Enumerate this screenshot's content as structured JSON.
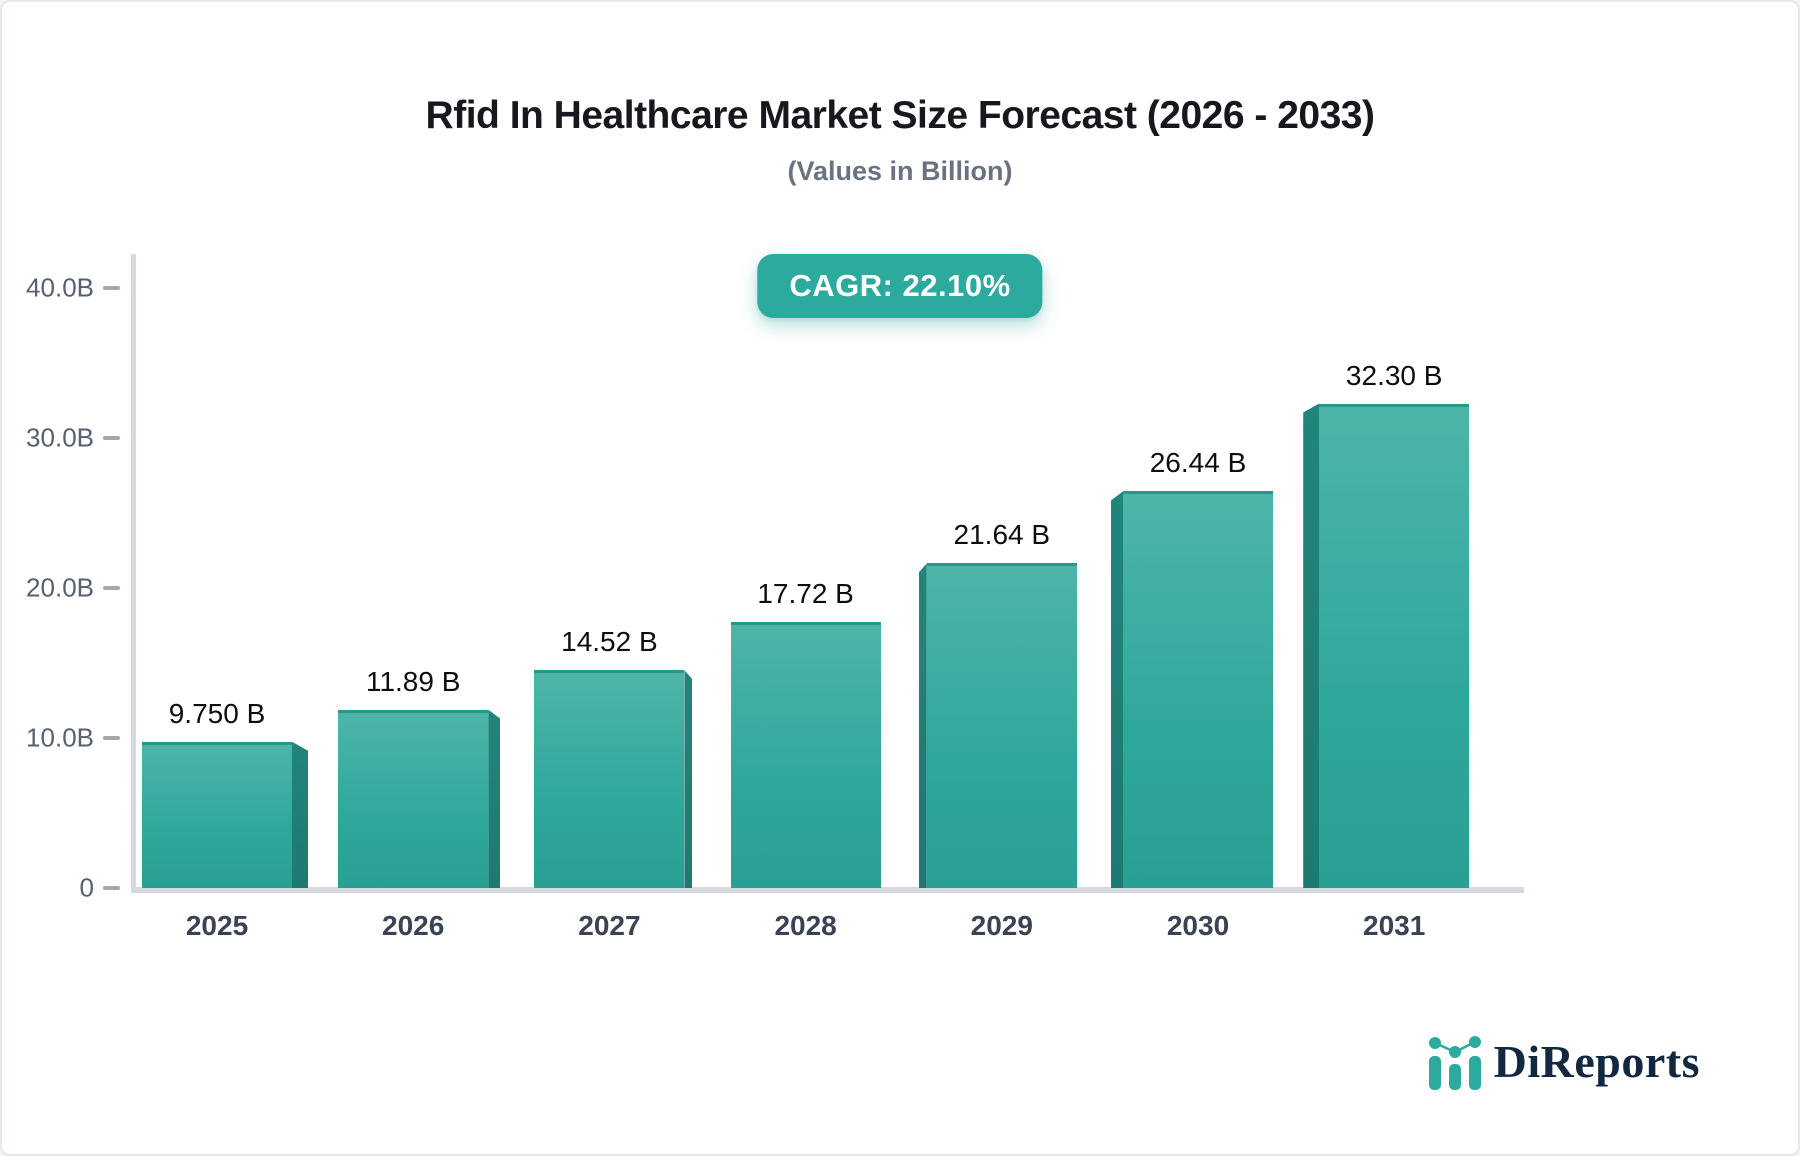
{
  "title": "Rfid In Healthcare Market Size Forecast (2026 - 2033)",
  "subtitle": "(Values in Billion)",
  "badge": {
    "label": "CAGR: 22.10%"
  },
  "chart_data": {
    "type": "bar",
    "title": "Rfid In Healthcare Market Size Forecast (2026 - 2033)",
    "subtitle": "(Values in Billion)",
    "cagr_label": "CAGR: 22.10%",
    "categories": [
      "2025",
      "2026",
      "2027",
      "2028",
      "2029",
      "2030",
      "2031"
    ],
    "values": [
      9.75,
      11.89,
      14.52,
      17.72,
      21.64,
      26.44,
      32.3
    ],
    "value_labels": [
      "9.750 B",
      "11.89 B",
      "14.52 B",
      "17.72 B",
      "21.64 B",
      "26.44 B",
      "32.30 B"
    ],
    "yticks": [
      {
        "label": "40.0B",
        "value": 40
      },
      {
        "label": "30.0B",
        "value": 30
      },
      {
        "label": "20.0B",
        "value": 20
      },
      {
        "label": "10.0B",
        "value": 10
      },
      {
        "label": "0",
        "value": 0
      }
    ],
    "ylim": [
      0,
      40
    ],
    "xlabel": "",
    "ylabel": "",
    "grid": false,
    "legend": false,
    "bar_style": "3d-extruded",
    "colors": {
      "bar_face_top": "#4eb4a9",
      "bar_face_bottom": "#29a093",
      "bar_side": "#1d7a70",
      "badge_background": "#2caa9e",
      "badge_text": "#ffffff",
      "axis": "#d6d9de",
      "tick": "#a2a8b3",
      "value_label": "#0d0d0d",
      "year_label": "#3a4254",
      "ytick_label": "#566070"
    }
  },
  "logo": {
    "text": "DiReports",
    "icon": "mini-bar-chart-icon"
  }
}
